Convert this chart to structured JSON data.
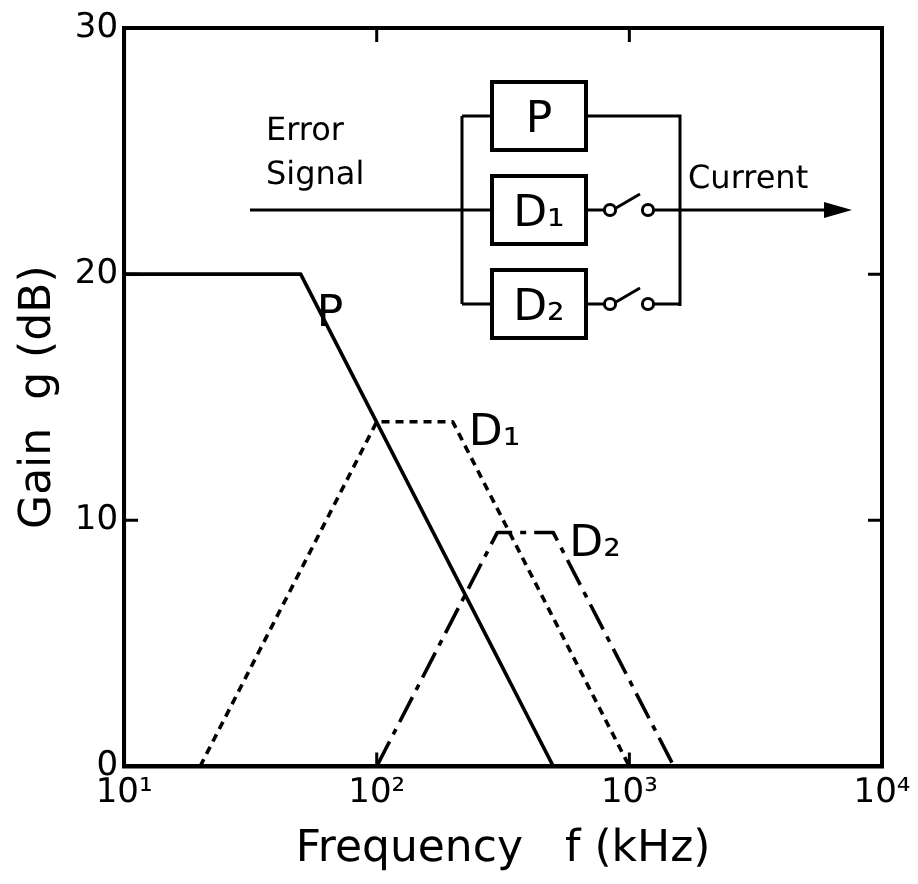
{
  "chart_data": {
    "type": "line",
    "xlabel": "Frequency   f (kHz)",
    "ylabel": "Gain  g (dB)",
    "log": "x",
    "xlim": [
      10,
      10000
    ],
    "xticks": [
      {
        "value": 10,
        "label": "10¹"
      },
      {
        "value": 100,
        "label": "10²"
      },
      {
        "value": 1000,
        "label": "10³"
      },
      {
        "value": 10000,
        "label": "10⁴"
      }
    ],
    "ylim": [
      0,
      30
    ],
    "yticks": [
      0,
      10,
      20,
      30
    ],
    "series": [
      {
        "name": "P",
        "color": "#000000",
        "line_style": "solid",
        "x": [
          10,
          50,
          500
        ],
        "values": [
          20,
          20,
          0
        ]
      },
      {
        "name": "D₁",
        "color": "#000000",
        "line_style": "dotted",
        "x": [
          20,
          100,
          200,
          1000
        ],
        "values": [
          0,
          14,
          14,
          0
        ]
      },
      {
        "name": "D₂",
        "color": "#000000",
        "line_style": "dashed",
        "x": [
          100,
          300,
          500,
          1500
        ],
        "values": [
          0,
          9.5,
          9.5,
          0
        ]
      }
    ],
    "annotations": [
      "Error Signal",
      "Current",
      "P",
      "D₁",
      "D₂"
    ]
  }
}
